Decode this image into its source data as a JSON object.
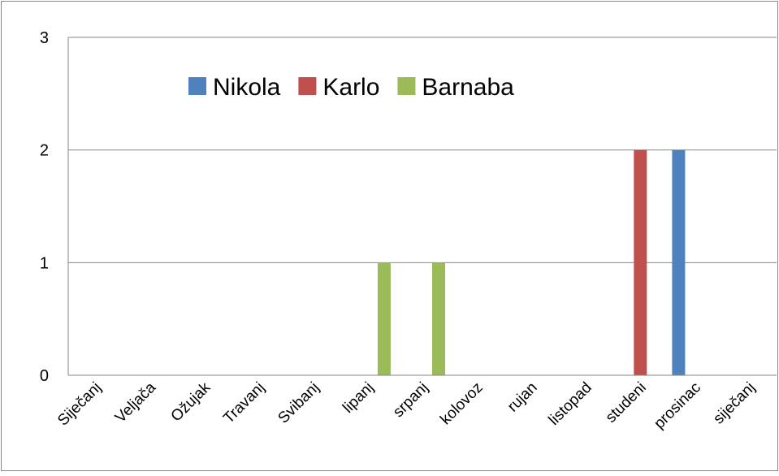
{
  "chart_data": {
    "type": "bar",
    "categories": [
      "Siječanj",
      "Veljača",
      "Ožujak",
      "Travanj",
      "Svibanj",
      "lipanj",
      "srpanj",
      "kolovoz",
      "rujan",
      "listopad",
      "studeni",
      "prosinac",
      "siječanj"
    ],
    "series": [
      {
        "name": "Nikola",
        "color": "#4F81BD",
        "values": [
          0,
          0,
          0,
          0,
          0,
          0,
          0,
          0,
          0,
          0,
          0,
          2,
          0
        ]
      },
      {
        "name": "Karlo",
        "color": "#C0504D",
        "values": [
          0,
          0,
          0,
          0,
          0,
          0,
          0,
          0,
          0,
          0,
          2,
          0,
          0
        ]
      },
      {
        "name": "Barnaba",
        "color": "#9BBB59",
        "values": [
          0,
          0,
          0,
          0,
          0,
          1,
          1,
          0,
          0,
          0,
          0,
          0,
          0
        ]
      }
    ],
    "ylim": [
      0,
      3
    ],
    "yticks": [
      0,
      1,
      2,
      3
    ],
    "grid": true,
    "legend_position": "top"
  }
}
